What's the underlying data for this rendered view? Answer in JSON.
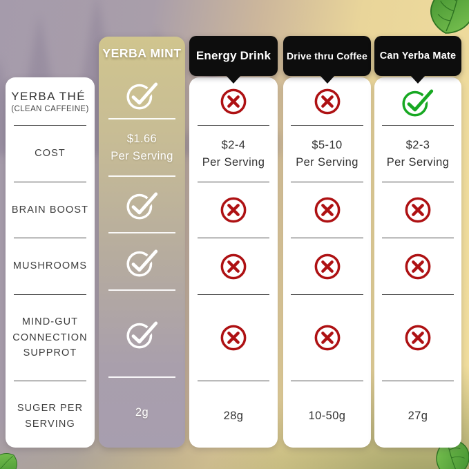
{
  "colors": {
    "header_black": "#0d0d0d",
    "highlight_top_tan": "#d0c58e",
    "highlight_bottom_lavender": "#a79eaf",
    "cross_red": "#ae1113",
    "check_green": "#17a822",
    "check_white": "#ffffff",
    "background_purple": "#a59bab",
    "background_gold": "#f1de9e"
  },
  "table": {
    "labels": {
      "row1_title": "YERBA THÉ",
      "row1_subtitle": "(CLEAN CAFFEINE)",
      "row2": "COST",
      "row3": "BRAIN BOOST",
      "row4": "MUSHROOMS",
      "row5": "MIND-GUT\nCONNECTION\nSUPPROT",
      "row6": "SUGER PER\nSERVING"
    },
    "columns": [
      {
        "header": "YERBA MINT",
        "availability": "check-white",
        "cost": "$1.66\nPer Serving",
        "brain_boost": "check-white",
        "mushrooms": "check-white",
        "mind_gut": "check-white",
        "sugar": "2g"
      },
      {
        "header": "Energy Drink",
        "availability": "cross-red",
        "cost": "$2-4\nPer Serving",
        "brain_boost": "cross-red",
        "mushrooms": "cross-red",
        "mind_gut": "cross-red",
        "sugar": "28g"
      },
      {
        "header": "Drive thru Coffee",
        "availability": "cross-red",
        "cost": "$5-10\nPer Serving",
        "brain_boost": "cross-red",
        "mushrooms": "cross-red",
        "mind_gut": "cross-red",
        "sugar": "10-50g"
      },
      {
        "header": "Can Yerba Mate",
        "availability": "check-green",
        "cost": "$2-3\nPer Serving",
        "brain_boost": "cross-red",
        "mushrooms": "cross-red",
        "mind_gut": "cross-red",
        "sugar": "27g"
      }
    ]
  },
  "chart_data": {
    "type": "table",
    "row_headers": [
      "YERBA THÉ (CLEAN CAFFEINE)",
      "COST",
      "BRAIN BOOST",
      "MUSHROOMS",
      "MIND-GUT CONNECTION SUPPROT",
      "SUGER PER SERVING"
    ],
    "columns": [
      "YERBA MINT",
      "Energy Drink",
      "Drive thru Coffee",
      "Can Yerba Mate"
    ],
    "cells": [
      [
        "yes",
        "no",
        "no",
        "yes"
      ],
      [
        "$1.66 Per Serving",
        "$2-4 Per Serving",
        "$5-10 Per Serving",
        "$2-3 Per Serving"
      ],
      [
        "yes",
        "no",
        "no",
        "no"
      ],
      [
        "yes",
        "no",
        "no",
        "no"
      ],
      [
        "yes",
        "no",
        "no",
        "no"
      ],
      [
        "2g",
        "28g",
        "10-50g",
        "27g"
      ]
    ]
  }
}
